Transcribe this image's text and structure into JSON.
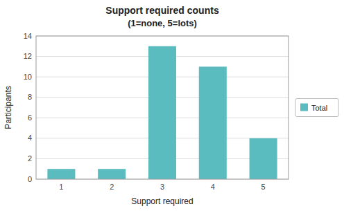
{
  "chart_data": {
    "type": "bar",
    "title": "Support required counts",
    "subtitle": "(1=none, 5=lots)",
    "xlabel": "Support required",
    "ylabel": "Participants",
    "categories": [
      "1",
      "2",
      "3",
      "4",
      "5"
    ],
    "series": [
      {
        "name": "Total",
        "color": "#5bbcbf",
        "values": [
          1,
          1,
          13,
          11,
          4
        ]
      }
    ],
    "ylim": [
      0,
      14
    ],
    "yticks": [
      0,
      2,
      4,
      6,
      8,
      10,
      12,
      14
    ],
    "grid": true,
    "legend": "right"
  }
}
